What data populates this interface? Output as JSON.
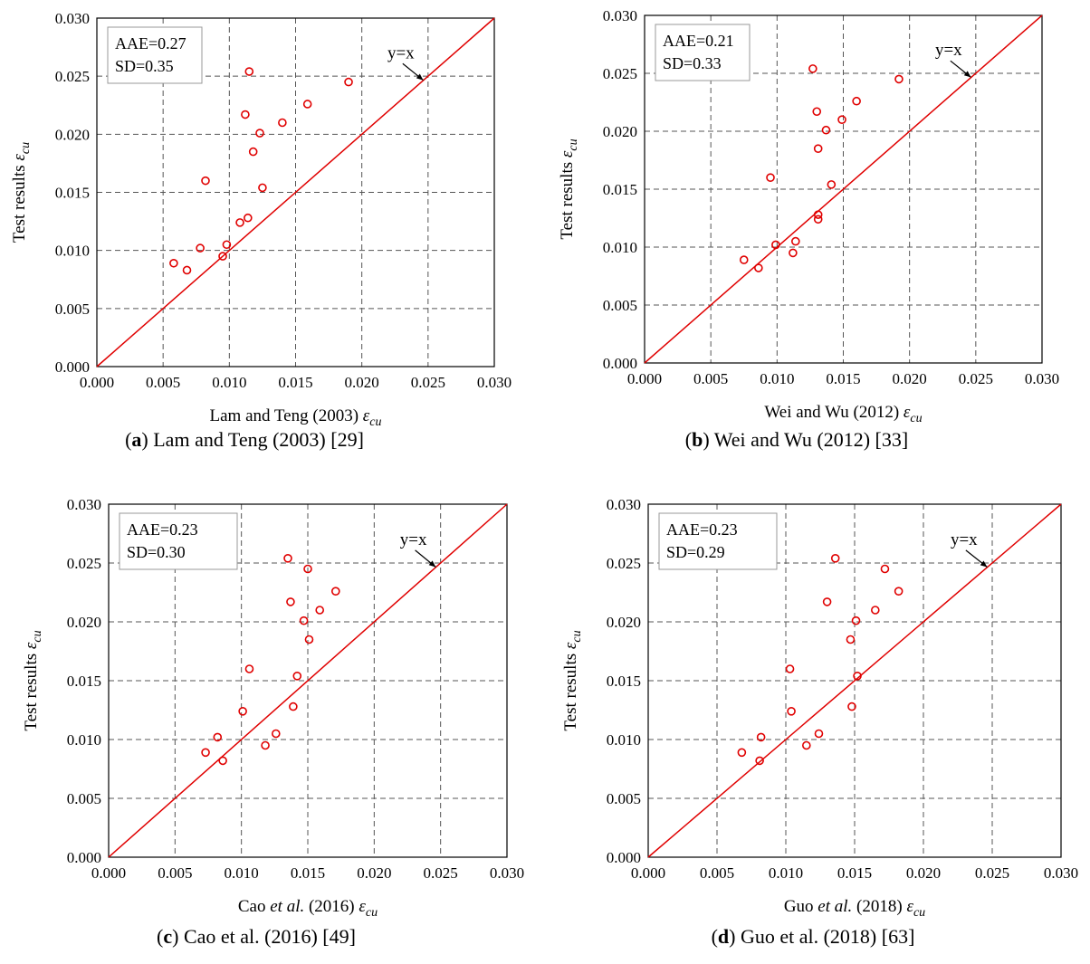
{
  "chart_data": [
    {
      "type": "scatter",
      "panel_letter": "a",
      "caption": ") Lam and Teng (2003) [29]",
      "xlabel": "Lam and Teng (2003)",
      "xlabel_symbol": "ε",
      "xlabel_sub": "cu",
      "ylabel": "Test results",
      "ylabel_symbol": "ε",
      "ylabel_sub": "cu",
      "stats": [
        "AAE=0.27",
        "SD=0.35"
      ],
      "reference_line_label": "y=x",
      "xlim": [
        0,
        0.03
      ],
      "ylim": [
        0,
        0.03
      ],
      "ticks": [
        "0.000",
        "0.005",
        "0.010",
        "0.015",
        "0.020",
        "0.025",
        "0.030"
      ],
      "grid": true,
      "points": [
        {
          "x": 0.0058,
          "y": 0.0089
        },
        {
          "x": 0.0068,
          "y": 0.0083
        },
        {
          "x": 0.0078,
          "y": 0.0102
        },
        {
          "x": 0.0082,
          "y": 0.016
        },
        {
          "x": 0.0095,
          "y": 0.0095
        },
        {
          "x": 0.0098,
          "y": 0.0105
        },
        {
          "x": 0.0108,
          "y": 0.0124
        },
        {
          "x": 0.0112,
          "y": 0.0217
        },
        {
          "x": 0.0114,
          "y": 0.0128
        },
        {
          "x": 0.0115,
          "y": 0.0254
        },
        {
          "x": 0.0118,
          "y": 0.0185
        },
        {
          "x": 0.0123,
          "y": 0.0201
        },
        {
          "x": 0.0125,
          "y": 0.0154
        },
        {
          "x": 0.014,
          "y": 0.021
        },
        {
          "x": 0.0159,
          "y": 0.0226
        },
        {
          "x": 0.019,
          "y": 0.0245
        }
      ]
    },
    {
      "type": "scatter",
      "panel_letter": "b",
      "caption": ") Wei and Wu (2012) [33]",
      "xlabel": "Wei and Wu (2012)",
      "xlabel_symbol": "ε",
      "xlabel_sub": "cu",
      "ylabel": "Test results",
      "ylabel_symbol": "ε",
      "ylabel_sub": "cu",
      "stats": [
        "AAE=0.21",
        "SD=0.33"
      ],
      "reference_line_label": "y=x",
      "xlim": [
        0,
        0.03
      ],
      "ylim": [
        0,
        0.03
      ],
      "ticks": [
        "0.000",
        "0.005",
        "0.010",
        "0.015",
        "0.020",
        "0.025",
        "0.030"
      ],
      "grid": true,
      "points": [
        {
          "x": 0.0075,
          "y": 0.0089
        },
        {
          "x": 0.0086,
          "y": 0.0082
        },
        {
          "x": 0.0095,
          "y": 0.016
        },
        {
          "x": 0.0099,
          "y": 0.0102
        },
        {
          "x": 0.0112,
          "y": 0.0095
        },
        {
          "x": 0.0114,
          "y": 0.0105
        },
        {
          "x": 0.0127,
          "y": 0.0254
        },
        {
          "x": 0.013,
          "y": 0.0217
        },
        {
          "x": 0.0131,
          "y": 0.0124
        },
        {
          "x": 0.0131,
          "y": 0.0128
        },
        {
          "x": 0.0131,
          "y": 0.0185
        },
        {
          "x": 0.0137,
          "y": 0.0201
        },
        {
          "x": 0.0141,
          "y": 0.0154
        },
        {
          "x": 0.0149,
          "y": 0.021
        },
        {
          "x": 0.016,
          "y": 0.0226
        },
        {
          "x": 0.0192,
          "y": 0.0245
        }
      ]
    },
    {
      "type": "scatter",
      "panel_letter": "c",
      "caption": ") Cao et al. (2016) [49]",
      "xlabel": "Cao",
      "xlabel_italic": "et al.",
      "xlabel_tail": "(2016)",
      "xlabel_symbol": "ε",
      "xlabel_sub": "cu",
      "ylabel": "Test results",
      "ylabel_symbol": "ε",
      "ylabel_sub": "cu",
      "stats": [
        "AAE=0.23",
        "SD=0.30"
      ],
      "reference_line_label": "y=x",
      "xlim": [
        0,
        0.03
      ],
      "ylim": [
        0,
        0.03
      ],
      "ticks": [
        "0.000",
        "0.005",
        "0.010",
        "0.015",
        "0.020",
        "0.025",
        "0.030"
      ],
      "grid": true,
      "points": [
        {
          "x": 0.0073,
          "y": 0.0089
        },
        {
          "x": 0.0082,
          "y": 0.0102
        },
        {
          "x": 0.0086,
          "y": 0.0082
        },
        {
          "x": 0.0101,
          "y": 0.0124
        },
        {
          "x": 0.0106,
          "y": 0.016
        },
        {
          "x": 0.0118,
          "y": 0.0095
        },
        {
          "x": 0.0126,
          "y": 0.0105
        },
        {
          "x": 0.0135,
          "y": 0.0254
        },
        {
          "x": 0.0137,
          "y": 0.0217
        },
        {
          "x": 0.0139,
          "y": 0.0128
        },
        {
          "x": 0.0142,
          "y": 0.0154
        },
        {
          "x": 0.0147,
          "y": 0.0201
        },
        {
          "x": 0.015,
          "y": 0.0245
        },
        {
          "x": 0.0151,
          "y": 0.0185
        },
        {
          "x": 0.0159,
          "y": 0.021
        },
        {
          "x": 0.0171,
          "y": 0.0226
        }
      ]
    },
    {
      "type": "scatter",
      "panel_letter": "d",
      "caption": ") Guo et al. (2018) [63]",
      "xlabel": "Guo",
      "xlabel_italic": "et al.",
      "xlabel_tail": "(2018)",
      "xlabel_symbol": "ε",
      "xlabel_sub": "cu",
      "ylabel": "Test results",
      "ylabel_symbol": "ε",
      "ylabel_sub": "cu",
      "stats": [
        "AAE=0.23",
        "SD=0.29"
      ],
      "reference_line_label": "y=x",
      "xlim": [
        0,
        0.03
      ],
      "ylim": [
        0,
        0.03
      ],
      "ticks": [
        "0.000",
        "0.005",
        "0.010",
        "0.015",
        "0.020",
        "0.025",
        "0.030"
      ],
      "grid": true,
      "points": [
        {
          "x": 0.0068,
          "y": 0.0089
        },
        {
          "x": 0.0081,
          "y": 0.0082
        },
        {
          "x": 0.0082,
          "y": 0.0102
        },
        {
          "x": 0.0103,
          "y": 0.016
        },
        {
          "x": 0.0104,
          "y": 0.0124
        },
        {
          "x": 0.0115,
          "y": 0.0095
        },
        {
          "x": 0.0124,
          "y": 0.0105
        },
        {
          "x": 0.013,
          "y": 0.0217
        },
        {
          "x": 0.0136,
          "y": 0.0254
        },
        {
          "x": 0.0147,
          "y": 0.0185
        },
        {
          "x": 0.0148,
          "y": 0.0128
        },
        {
          "x": 0.0151,
          "y": 0.0201
        },
        {
          "x": 0.0152,
          "y": 0.0154
        },
        {
          "x": 0.0165,
          "y": 0.021
        },
        {
          "x": 0.0172,
          "y": 0.0245
        },
        {
          "x": 0.0182,
          "y": 0.0226
        }
      ]
    }
  ],
  "colors": {
    "points": "#e00000",
    "reference_line": "#e00000",
    "grid": "#555555"
  }
}
